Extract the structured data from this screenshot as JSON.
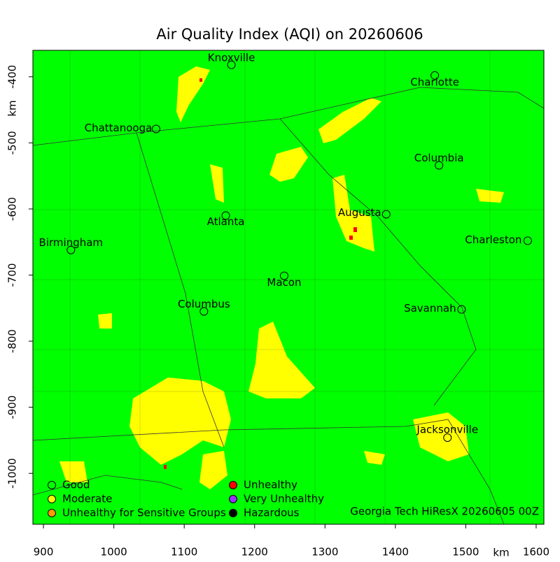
{
  "chart_data": {
    "type": "map",
    "title": "Air Quality Index (AQI) on 20260606",
    "xlabel": "km",
    "ylabel": "km",
    "xlim": [
      885,
      1611
    ],
    "ylim": [
      -1077,
      -360
    ],
    "xticks": [
      900,
      1000,
      1100,
      1200,
      1300,
      1400,
      1500,
      1600
    ],
    "yticks": [
      -400,
      -500,
      -600,
      -700,
      -800,
      -900,
      -1000
    ],
    "background": "#00ff00",
    "categories": [
      "Knoxville",
      "Charlotte",
      "Chattanooga",
      "Columbia",
      "Atlanta",
      "Augusta",
      "Birmingham",
      "Charleston",
      "Macon",
      "Columbus",
      "Savannah",
      "Jacksonville"
    ],
    "x": [
      1167,
      1456,
      1060,
      1462,
      1159,
      1387,
      939,
      1588,
      1242,
      1128,
      1494,
      1474
    ],
    "values": [
      -382,
      -398,
      -479,
      -534,
      -610,
      -608,
      -662,
      -648,
      -701,
      -755,
      -752,
      -946
    ],
    "legend": [
      {
        "name": "Good",
        "color": "#00ff00"
      },
      {
        "name": "Moderate",
        "color": "#ffff00"
      },
      {
        "name": "Unhealthy for Sensitive Groups",
        "color": "#ff9900"
      },
      {
        "name": "Unhealthy",
        "color": "#ff0000"
      },
      {
        "name": "Very Unhealthy",
        "color": "#9933ff"
      },
      {
        "name": "Hazardous",
        "color": "#000000"
      }
    ],
    "credit": "Georgia Tech HiResX 20260605 00Z"
  }
}
